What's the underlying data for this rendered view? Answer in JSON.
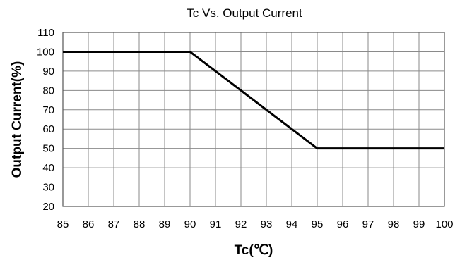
{
  "chart_data": {
    "type": "line",
    "title": "Tc Vs. Output Current",
    "xlabel": "Tc(℃)",
    "ylabel": "Output Current(%)",
    "xlim": [
      85,
      100
    ],
    "ylim": [
      20,
      110
    ],
    "x_ticks": [
      85,
      86,
      87,
      88,
      89,
      90,
      91,
      92,
      93,
      94,
      95,
      96,
      97,
      98,
      99,
      100
    ],
    "y_ticks": [
      20,
      30,
      40,
      50,
      60,
      70,
      80,
      90,
      100,
      110
    ],
    "grid": true,
    "series": [
      {
        "x": [
          85,
          90,
          95,
          100
        ],
        "y": [
          100,
          100,
          50,
          50
        ]
      }
    ]
  }
}
